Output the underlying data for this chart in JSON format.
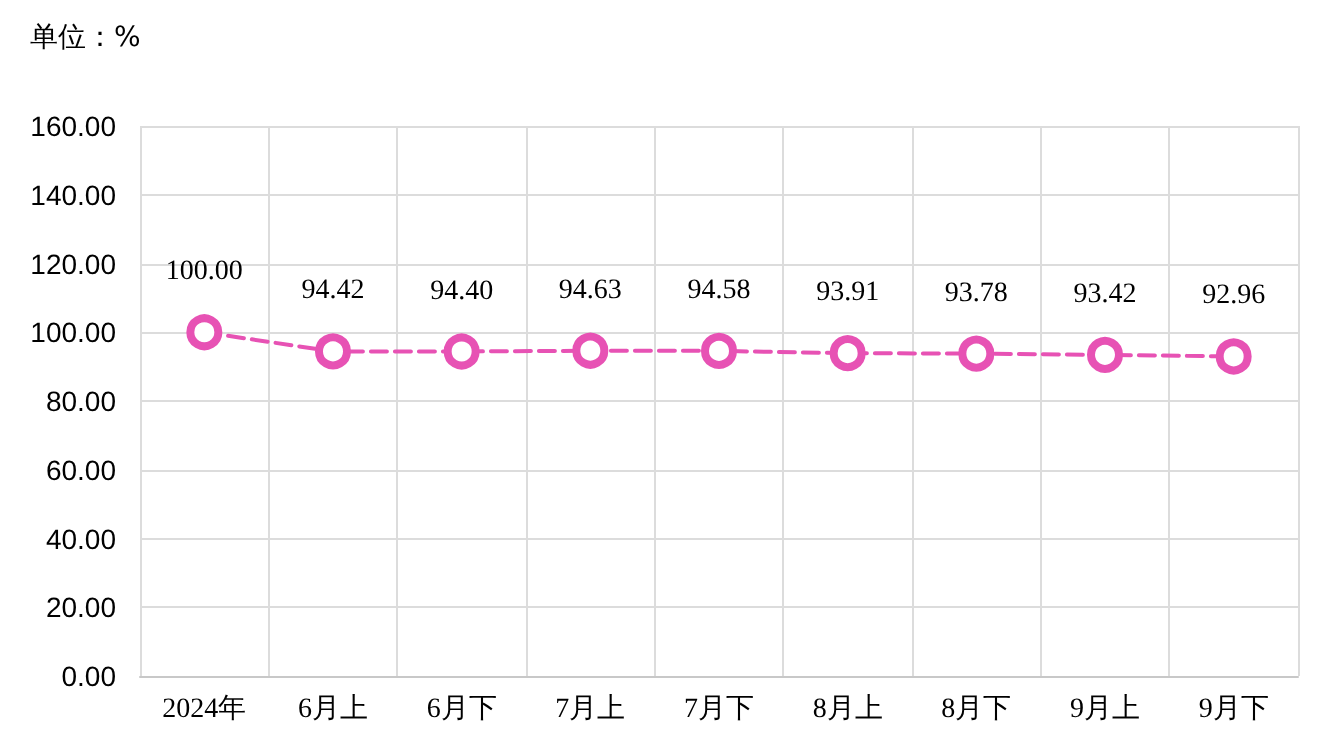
{
  "chart_data": {
    "type": "line",
    "annotations": [
      "单位：%"
    ],
    "categories": [
      "2024年",
      "6月上",
      "6月下",
      "7月上",
      "7月下",
      "8月上",
      "8月下",
      "9月上",
      "9月下"
    ],
    "series": [
      {
        "color": "#e752b4",
        "values": [
          100,
          94.42,
          94.4,
          94.63,
          94.58,
          93.91,
          93.78,
          93.42,
          92.96
        ],
        "value_labels": [
          "100.00",
          "94.42",
          "94.40",
          "94.63",
          "94.58",
          "93.91",
          "93.78",
          "93.42",
          "92.96"
        ]
      }
    ],
    "ylim": [
      0,
      160
    ],
    "yticks": [
      {
        "value": 0,
        "label": "0.00"
      },
      {
        "value": 20,
        "label": "20.00"
      },
      {
        "value": 40,
        "label": "40.00"
      },
      {
        "value": 60,
        "label": "60.00"
      },
      {
        "value": 80,
        "label": "80.00"
      },
      {
        "value": 100,
        "label": "100.00"
      },
      {
        "value": 120,
        "label": "120.00"
      },
      {
        "value": 140,
        "label": "140.00"
      },
      {
        "value": 160,
        "label": "160.00"
      }
    ],
    "grid": true,
    "marker": "circle",
    "line_style": "dashed"
  }
}
